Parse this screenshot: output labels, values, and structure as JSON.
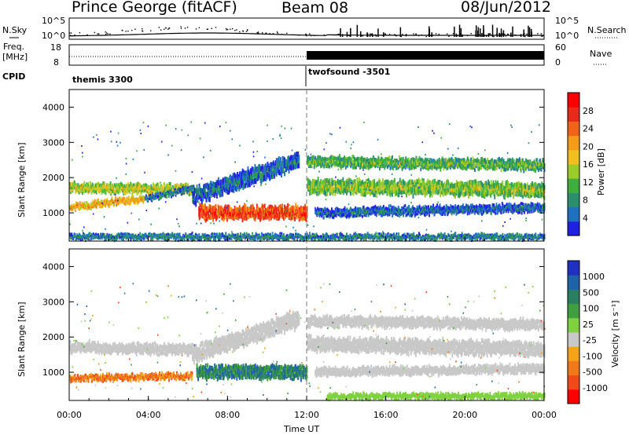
{
  "header": {
    "station": "Prince George (fitACF)",
    "beam": "Beam 08",
    "date": "08/Jun/2012"
  },
  "strips": {
    "nsky_label": "N.Sky",
    "nsearch_label": "N.Search",
    "noise_ticks": [
      "10^5",
      "10^0"
    ],
    "freq_label_1": "Freq.",
    "freq_label_2": "[MHz]",
    "freq_ticks": [
      "18",
      "8"
    ],
    "nave_label": "Nave",
    "nave_ticks": [
      "60",
      "0"
    ],
    "cpid_label": "CPID",
    "cpid_1": "themis 3300",
    "cpid_2": "twofsound -3501"
  },
  "colors": {
    "power": [
      "#2020e0",
      "#2070c0",
      "#2a8f6a",
      "#3fae3f",
      "#9ccc2a",
      "#f0c020",
      "#f39b1a",
      "#f0641a",
      "#e82a1a",
      "#ff0000"
    ],
    "velocity": [
      "#2030c0",
      "#1e63a8",
      "#2a7f60",
      "#3f9f3f",
      "#7fd13f",
      "#c8c8c8",
      "#f5a31a",
      "#f07a1a",
      "#f04a1a",
      "#ff0000"
    ],
    "grey": "#c8c8c8"
  },
  "chart_data": [
    {
      "type": "heatmap",
      "panel": "power",
      "ylabel": "Slant Range [km]",
      "y_ticks": [
        "1000",
        "2000",
        "3000",
        "4000"
      ],
      "ylim": [
        200,
        4500
      ],
      "colorbar_label": "Power [dB]",
      "colorbar_ticks": [
        "4",
        "8",
        "12",
        "16",
        "20",
        "24",
        "28"
      ],
      "scale": [
        0,
        30
      ],
      "bands": [
        {
          "t": [
            0,
            6.2
          ],
          "r0": [
            1720,
            1650
          ],
          "w": 220,
          "p": 16
        },
        {
          "t": [
            0,
            3.8
          ],
          "r0": [
            1160,
            1400
          ],
          "w": 150,
          "p": 20
        },
        {
          "t": [
            3.8,
            6.3
          ],
          "r0": [
            1400,
            1700
          ],
          "w": 120,
          "p": 8
        },
        {
          "t": [
            6.2,
            11.6
          ],
          "r0": [
            1450,
            2500
          ],
          "w": 400,
          "p": 6
        },
        {
          "t": [
            6.5,
            12.0
          ],
          "r0": [
            1000,
            1000
          ],
          "w": 330,
          "p": 26
        },
        {
          "t": [
            12.0,
            24.0
          ],
          "r0": [
            2450,
            2350
          ],
          "w": 250,
          "p": 12
        },
        {
          "t": [
            12.0,
            24.0
          ],
          "r0": [
            1750,
            1650
          ],
          "w": 350,
          "p": 14
        },
        {
          "t": [
            12.4,
            24.0
          ],
          "r0": [
            1000,
            1150
          ],
          "w": 200,
          "p": 6
        },
        {
          "t": [
            0,
            24.0
          ],
          "r0": [
            320,
            320
          ],
          "w": 120,
          "p": 8
        }
      ]
    },
    {
      "type": "heatmap",
      "panel": "velocity",
      "ylabel": "Slant Range [km]",
      "y_ticks": [
        "1000",
        "2000",
        "3000",
        "4000"
      ],
      "ylim": [
        200,
        4500
      ],
      "colorbar_label": "Velocity [m s⁻¹]",
      "colorbar_ticks": [
        "1000",
        "500",
        "100",
        "25",
        "-25",
        "-100",
        "-500",
        "-1000"
      ],
      "bands": [
        {
          "t": [
            0,
            6.2
          ],
          "r0": [
            1700,
            1650
          ],
          "w": 250,
          "v": "grey"
        },
        {
          "t": [
            6.2,
            11.6
          ],
          "r0": [
            1500,
            2500
          ],
          "w": 400,
          "v": "grey"
        },
        {
          "t": [
            0,
            6.2
          ],
          "r0": [
            830,
            900
          ],
          "w": 140,
          "v": "orange"
        },
        {
          "t": [
            6.4,
            12.0
          ],
          "r0": [
            1000,
            1000
          ],
          "w": 330,
          "v": "green"
        },
        {
          "t": [
            12.0,
            24.0
          ],
          "r0": [
            2450,
            2350
          ],
          "w": 250,
          "v": "grey"
        },
        {
          "t": [
            12.0,
            24.0
          ],
          "r0": [
            1800,
            1650
          ],
          "w": 350,
          "v": "grey"
        },
        {
          "t": [
            12.4,
            24.0
          ],
          "r0": [
            1000,
            1100
          ],
          "w": 200,
          "v": "grey"
        },
        {
          "t": [
            13.0,
            24.0
          ],
          "r0": [
            320,
            320
          ],
          "w": 120,
          "v": "ltgreen"
        }
      ]
    }
  ],
  "x_axis": {
    "ticks": [
      "00:00",
      "04:00",
      "08:00",
      "12:00",
      "16:00",
      "20:00",
      "00:00"
    ],
    "label": "Time UT"
  }
}
